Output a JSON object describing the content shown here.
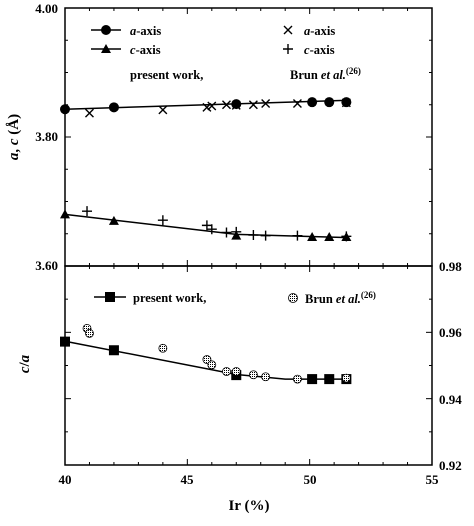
{
  "chart_data": [
    {
      "type": "scatter",
      "xlim": [
        40,
        55
      ],
      "ylim": [
        3.6,
        4.0
      ],
      "x_ticks": [
        "40",
        "45",
        "50",
        "55"
      ],
      "y_ticks": [
        "3.60",
        "3.80",
        "4.00"
      ],
      "ylabel": {
        "a": "a",
        "sep": ", ",
        "c": "c",
        "unit": " (Å)"
      },
      "legend": {
        "a_axis": {
          "italic": "a",
          "rest": "-axis"
        },
        "c_axis": {
          "italic": "c",
          "rest": "-axis"
        },
        "present": "present work,",
        "brun": {
          "pre": "Brun ",
          "italic": "et al.",
          "sup": "(26)"
        }
      },
      "series": [
        {
          "marker": "circle",
          "x": [
            40.0,
            42.0,
            47.0,
            50.1,
            50.8,
            51.5
          ],
          "y": [
            3.843,
            3.846,
            3.851,
            3.854,
            3.854,
            3.854
          ],
          "fit": [
            [
              40.0,
              3.843
            ],
            [
              51.6,
              3.857
            ]
          ]
        },
        {
          "marker": "cross",
          "x": [
            41.0,
            44.0,
            45.8,
            46.0,
            46.6,
            47.0,
            47.7,
            48.2,
            49.5,
            51.5
          ],
          "y": [
            3.837,
            3.842,
            3.846,
            3.848,
            3.85,
            3.849,
            3.85,
            3.852,
            3.852,
            3.853
          ]
        },
        {
          "marker": "triangle",
          "x": [
            40.0,
            42.0,
            47.0,
            50.1,
            50.8,
            51.5
          ],
          "y": [
            3.68,
            3.67,
            3.647,
            3.645,
            3.645,
            3.645
          ],
          "fit": [
            [
              40.0,
              3.68
            ],
            [
              47.0,
              3.649
            ],
            [
              51.6,
              3.644
            ]
          ]
        },
        {
          "marker": "plus",
          "x": [
            40.9,
            44.0,
            45.8,
            46.0,
            46.6,
            47.0,
            47.7,
            48.2,
            49.5,
            51.5
          ],
          "y": [
            3.685,
            3.671,
            3.663,
            3.657,
            3.652,
            3.653,
            3.648,
            3.647,
            3.647,
            3.646
          ]
        }
      ]
    },
    {
      "type": "scatter",
      "xlim": [
        40,
        55
      ],
      "ylim": [
        0.92,
        0.98
      ],
      "x_ticks": [
        "40",
        "45",
        "50",
        "55"
      ],
      "y_ticks": [
        "0.92",
        "0.94",
        "0.96",
        "0.98"
      ],
      "xlabel": "Ir (%)",
      "ylabel": {
        "c": "c",
        "slash": "/",
        "a": "a"
      },
      "legend": {
        "present": "present work,",
        "brun": {
          "pre": "Brun ",
          "italic": "et al.",
          "sup": "(26)"
        }
      },
      "series": [
        {
          "marker": "square",
          "x": [
            40.0,
            42.0,
            47.0,
            50.1,
            50.8,
            51.5
          ],
          "y": [
            0.9572,
            0.9546,
            0.9471,
            0.9459,
            0.9459,
            0.9459
          ],
          "fit": [
            [
              40.0,
              0.9573
            ],
            [
              47.0,
              0.9473
            ],
            [
              49.0,
              0.9459
            ],
            [
              51.6,
              0.9459
            ]
          ]
        },
        {
          "marker": "hatched-circle",
          "x": [
            40.9,
            41.0,
            44.0,
            45.8,
            46.0,
            46.6,
            47.0,
            47.7,
            48.2,
            49.5,
            51.5
          ],
          "y": [
            0.9612,
            0.9597,
            0.9552,
            0.9518,
            0.9502,
            0.9482,
            0.9482,
            0.9472,
            0.9466,
            0.9459,
            0.9462
          ]
        }
      ]
    }
  ]
}
